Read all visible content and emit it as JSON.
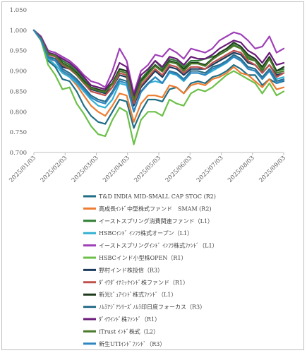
{
  "chart_data": {
    "type": "line",
    "title": "",
    "xlabel": "",
    "ylabel": "",
    "ylim": [
      0.7,
      1.05
    ],
    "yticks": [
      "0.700",
      "0.750",
      "0.800",
      "0.850",
      "0.900",
      "0.950",
      "1.000",
      "1.050"
    ],
    "x_tick_labels": [
      "2025/01/03",
      "2025/02/03",
      "2025/03/03",
      "2025/04/03",
      "2025/05/03",
      "2025/06/03",
      "2025/07/03",
      "2025/08/03",
      "2025/09/03"
    ],
    "x": [
      "2025/01/03",
      "2025/01/10",
      "2025/01/17",
      "2025/01/24",
      "2025/01/31",
      "2025/02/07",
      "2025/02/14",
      "2025/02/21",
      "2025/02/28",
      "2025/03/07",
      "2025/03/14",
      "2025/03/21",
      "2025/03/28",
      "2025/04/04",
      "2025/04/11",
      "2025/04/18",
      "2025/04/25",
      "2025/05/02",
      "2025/05/09",
      "2025/05/16",
      "2025/05/23",
      "2025/05/30",
      "2025/06/06",
      "2025/06/13",
      "2025/06/20",
      "2025/06/27",
      "2025/07/04",
      "2025/07/11",
      "2025/07/18",
      "2025/07/25",
      "2025/08/01",
      "2025/08/08",
      "2025/08/15",
      "2025/08/22",
      "2025/08/29",
      "2025/09/05"
    ],
    "grid": false,
    "legend_position": "bottom",
    "series": [
      {
        "name": "T&D INDIA MID-SMALL CAP STOC (R2)",
        "color": "#1f6e86",
        "values": [
          1.0,
          0.975,
          0.925,
          0.91,
          0.88,
          0.875,
          0.85,
          0.815,
          0.79,
          0.775,
          0.77,
          0.8,
          0.83,
          0.825,
          0.76,
          0.8,
          0.83,
          0.83,
          0.825,
          0.855,
          0.86,
          0.845,
          0.87,
          0.875,
          0.87,
          0.885,
          0.89,
          0.9,
          0.915,
          0.905,
          0.89,
          0.89,
          0.865,
          0.88,
          0.87,
          0.875
        ]
      },
      {
        "name": "高成長ｲﾝﾄﾞ中型株式ファンド　SMAM (R2)",
        "color": "#ed7d31",
        "values": [
          1.0,
          0.975,
          0.93,
          0.925,
          0.9,
          0.885,
          0.865,
          0.84,
          0.815,
          0.8,
          0.79,
          0.815,
          0.845,
          0.84,
          0.775,
          0.82,
          0.84,
          0.84,
          0.835,
          0.865,
          0.86,
          0.845,
          0.865,
          0.87,
          0.865,
          0.88,
          0.885,
          0.895,
          0.91,
          0.895,
          0.89,
          0.875,
          0.86,
          0.88,
          0.855,
          0.86
        ]
      },
      {
        "name": "イーストスプリング消費関連ファンド（L1）",
        "color": "#2f7d32",
        "values": [
          1.0,
          0.98,
          0.945,
          0.94,
          0.925,
          0.915,
          0.9,
          0.88,
          0.865,
          0.86,
          0.855,
          0.87,
          0.905,
          0.9,
          0.83,
          0.88,
          0.9,
          0.925,
          0.905,
          0.93,
          0.925,
          0.91,
          0.925,
          0.925,
          0.93,
          0.935,
          0.94,
          0.95,
          0.965,
          0.955,
          0.93,
          0.925,
          0.9,
          0.93,
          0.9,
          0.905
        ]
      },
      {
        "name": "HSBCｲﾝﾄﾞ ｲﾝﾌﾗ株式オープン（L1）",
        "color": "#33b1d4",
        "values": [
          1.0,
          0.975,
          0.93,
          0.915,
          0.895,
          0.885,
          0.87,
          0.85,
          0.83,
          0.815,
          0.81,
          0.83,
          0.87,
          0.865,
          0.8,
          0.85,
          0.87,
          0.875,
          0.87,
          0.895,
          0.89,
          0.875,
          0.895,
          0.895,
          0.89,
          0.9,
          0.91,
          0.92,
          0.935,
          0.925,
          0.91,
          0.905,
          0.88,
          0.905,
          0.88,
          0.885
        ]
      },
      {
        "name": "イーストスプリングｲﾝﾄﾞ ｲﾝﾌﾗ株式ﾌｧﾝﾄﾞ（L1）",
        "color": "#a040b8",
        "values": [
          1.0,
          0.985,
          0.95,
          0.945,
          0.935,
          0.925,
          0.91,
          0.89,
          0.875,
          0.87,
          0.86,
          0.9,
          0.955,
          0.925,
          0.845,
          0.9,
          0.915,
          0.94,
          0.935,
          0.955,
          0.945,
          0.93,
          0.955,
          0.95,
          0.945,
          0.955,
          0.975,
          0.985,
          0.995,
          0.99,
          0.975,
          0.955,
          0.96,
          0.985,
          0.945,
          0.955
        ]
      },
      {
        "name": "HSBCインド小型株OPEN（R1）",
        "color": "#6cc04a",
        "values": [
          1.0,
          0.975,
          0.915,
          0.89,
          0.855,
          0.86,
          0.82,
          0.795,
          0.765,
          0.745,
          0.74,
          0.78,
          0.81,
          0.8,
          0.72,
          0.78,
          0.8,
          0.8,
          0.79,
          0.83,
          0.82,
          0.815,
          0.845,
          0.855,
          0.85,
          0.86,
          0.875,
          0.89,
          0.9,
          0.89,
          0.88,
          0.87,
          0.845,
          0.87,
          0.84,
          0.85
        ]
      },
      {
        "name": "野村インド株投信（R3）",
        "color": "#1b3a5c",
        "values": [
          1.0,
          0.98,
          0.935,
          0.93,
          0.91,
          0.905,
          0.89,
          0.87,
          0.855,
          0.85,
          0.845,
          0.86,
          0.89,
          0.885,
          0.815,
          0.86,
          0.88,
          0.9,
          0.885,
          0.91,
          0.905,
          0.89,
          0.905,
          0.905,
          0.905,
          0.915,
          0.925,
          0.935,
          0.945,
          0.94,
          0.92,
          0.915,
          0.895,
          0.915,
          0.89,
          0.895
        ]
      },
      {
        "name": "ﾀﾞｲﾜﾀﾞｲﾅﾐｯｸｲﾝﾄﾞ株ファンド（R1）",
        "color": "#c0504d",
        "values": [
          1.0,
          0.978,
          0.94,
          0.935,
          0.915,
          0.905,
          0.89,
          0.87,
          0.85,
          0.845,
          0.84,
          0.86,
          0.895,
          0.89,
          0.82,
          0.865,
          0.885,
          0.905,
          0.89,
          0.915,
          0.91,
          0.895,
          0.91,
          0.91,
          0.905,
          0.92,
          0.93,
          0.94,
          0.95,
          0.945,
          0.925,
          0.915,
          0.895,
          0.915,
          0.885,
          0.895
        ]
      },
      {
        "name": "新光ﾋﾟｭｱｲﾝﾄﾞ株式ﾌｧﾝﾄﾞ（L1）",
        "color": "#1e3b1e",
        "values": [
          1.0,
          0.982,
          0.945,
          0.94,
          0.92,
          0.91,
          0.895,
          0.875,
          0.86,
          0.855,
          0.85,
          0.87,
          0.905,
          0.9,
          0.83,
          0.875,
          0.895,
          0.915,
          0.9,
          0.925,
          0.92,
          0.905,
          0.92,
          0.92,
          0.915,
          0.93,
          0.945,
          0.955,
          0.97,
          0.96,
          0.94,
          0.93,
          0.91,
          0.935,
          0.9,
          0.91
        ]
      },
      {
        "name": "ﾉﾑﾗｱｼﾞｱｼﾘｰｽﾞﾉﾑﾗ印日度フォーカス（R3）",
        "color": "#2a6f8a",
        "values": [
          1.0,
          0.978,
          0.935,
          0.93,
          0.905,
          0.895,
          0.88,
          0.86,
          0.84,
          0.83,
          0.825,
          0.85,
          0.88,
          0.875,
          0.8,
          0.85,
          0.87,
          0.885,
          0.87,
          0.9,
          0.895,
          0.88,
          0.9,
          0.9,
          0.895,
          0.91,
          0.915,
          0.925,
          0.94,
          0.93,
          0.91,
          0.905,
          0.885,
          0.905,
          0.875,
          0.88
        ]
      },
      {
        "name": "ﾀﾞｲﾜｲﾝﾄﾞ株ﾌｧﾝﾄﾞ（R1）",
        "color": "#6a1b7a",
        "values": [
          1.0,
          0.982,
          0.945,
          0.94,
          0.93,
          0.92,
          0.905,
          0.885,
          0.865,
          0.86,
          0.855,
          0.88,
          0.92,
          0.91,
          0.84,
          0.89,
          0.905,
          0.925,
          0.91,
          0.935,
          0.93,
          0.915,
          0.935,
          0.93,
          0.93,
          0.94,
          0.955,
          0.965,
          0.975,
          0.97,
          0.95,
          0.94,
          0.92,
          0.945,
          0.915,
          0.92
        ]
      },
      {
        "name": "iTrust ｲﾝﾄﾞ株式（L2）",
        "color": "#4a7a2a",
        "values": [
          1.0,
          0.98,
          0.942,
          0.938,
          0.918,
          0.908,
          0.892,
          0.872,
          0.858,
          0.852,
          0.848,
          0.868,
          0.9,
          0.895,
          0.828,
          0.872,
          0.892,
          0.912,
          0.898,
          0.922,
          0.918,
          0.9,
          0.918,
          0.918,
          0.912,
          0.928,
          0.94,
          0.95,
          0.962,
          0.955,
          0.935,
          0.925,
          0.905,
          0.93,
          0.895,
          0.9
        ]
      },
      {
        "name": "新生UTIｲﾝﾄﾞﾌｧﾝﾄﾞ（R3）",
        "color": "#2e86c1",
        "values": [
          1.0,
          0.977,
          0.932,
          0.925,
          0.9,
          0.89,
          0.875,
          0.855,
          0.835,
          0.825,
          0.82,
          0.845,
          0.875,
          0.87,
          0.8,
          0.848,
          0.868,
          0.885,
          0.87,
          0.898,
          0.892,
          0.878,
          0.895,
          0.895,
          0.89,
          0.905,
          0.912,
          0.922,
          0.935,
          0.925,
          0.905,
          0.9,
          0.88,
          0.9,
          0.87,
          0.878
        ]
      }
    ]
  }
}
